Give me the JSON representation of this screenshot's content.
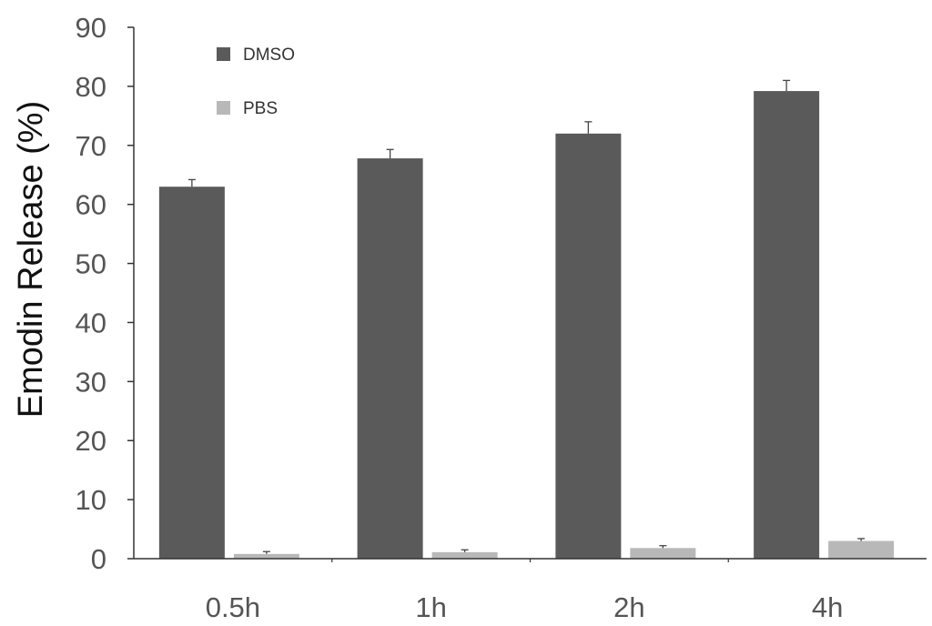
{
  "chart_data": {
    "type": "bar",
    "title": "",
    "xlabel": "",
    "ylabel": "Emodin Release (%)",
    "categories": [
      "0.5h",
      "1h",
      "2h",
      "4h"
    ],
    "series": [
      {
        "name": "DMSO",
        "color": "#5a5a5a",
        "values": [
          63,
          67.8,
          72,
          79.2
        ],
        "errors": [
          1.2,
          1.5,
          2.0,
          1.8
        ]
      },
      {
        "name": "PBS",
        "color": "#b8b8b8",
        "values": [
          0.8,
          1.1,
          1.8,
          3.0
        ],
        "errors": [
          0.4,
          0.4,
          0.4,
          0.4
        ]
      }
    ],
    "ylim": [
      0,
      90
    ],
    "yticks": [
      "0",
      "10",
      "20",
      "30",
      "40",
      "50",
      "60",
      "70",
      "80",
      "90"
    ],
    "grid": false,
    "legend_position": "top-left"
  }
}
